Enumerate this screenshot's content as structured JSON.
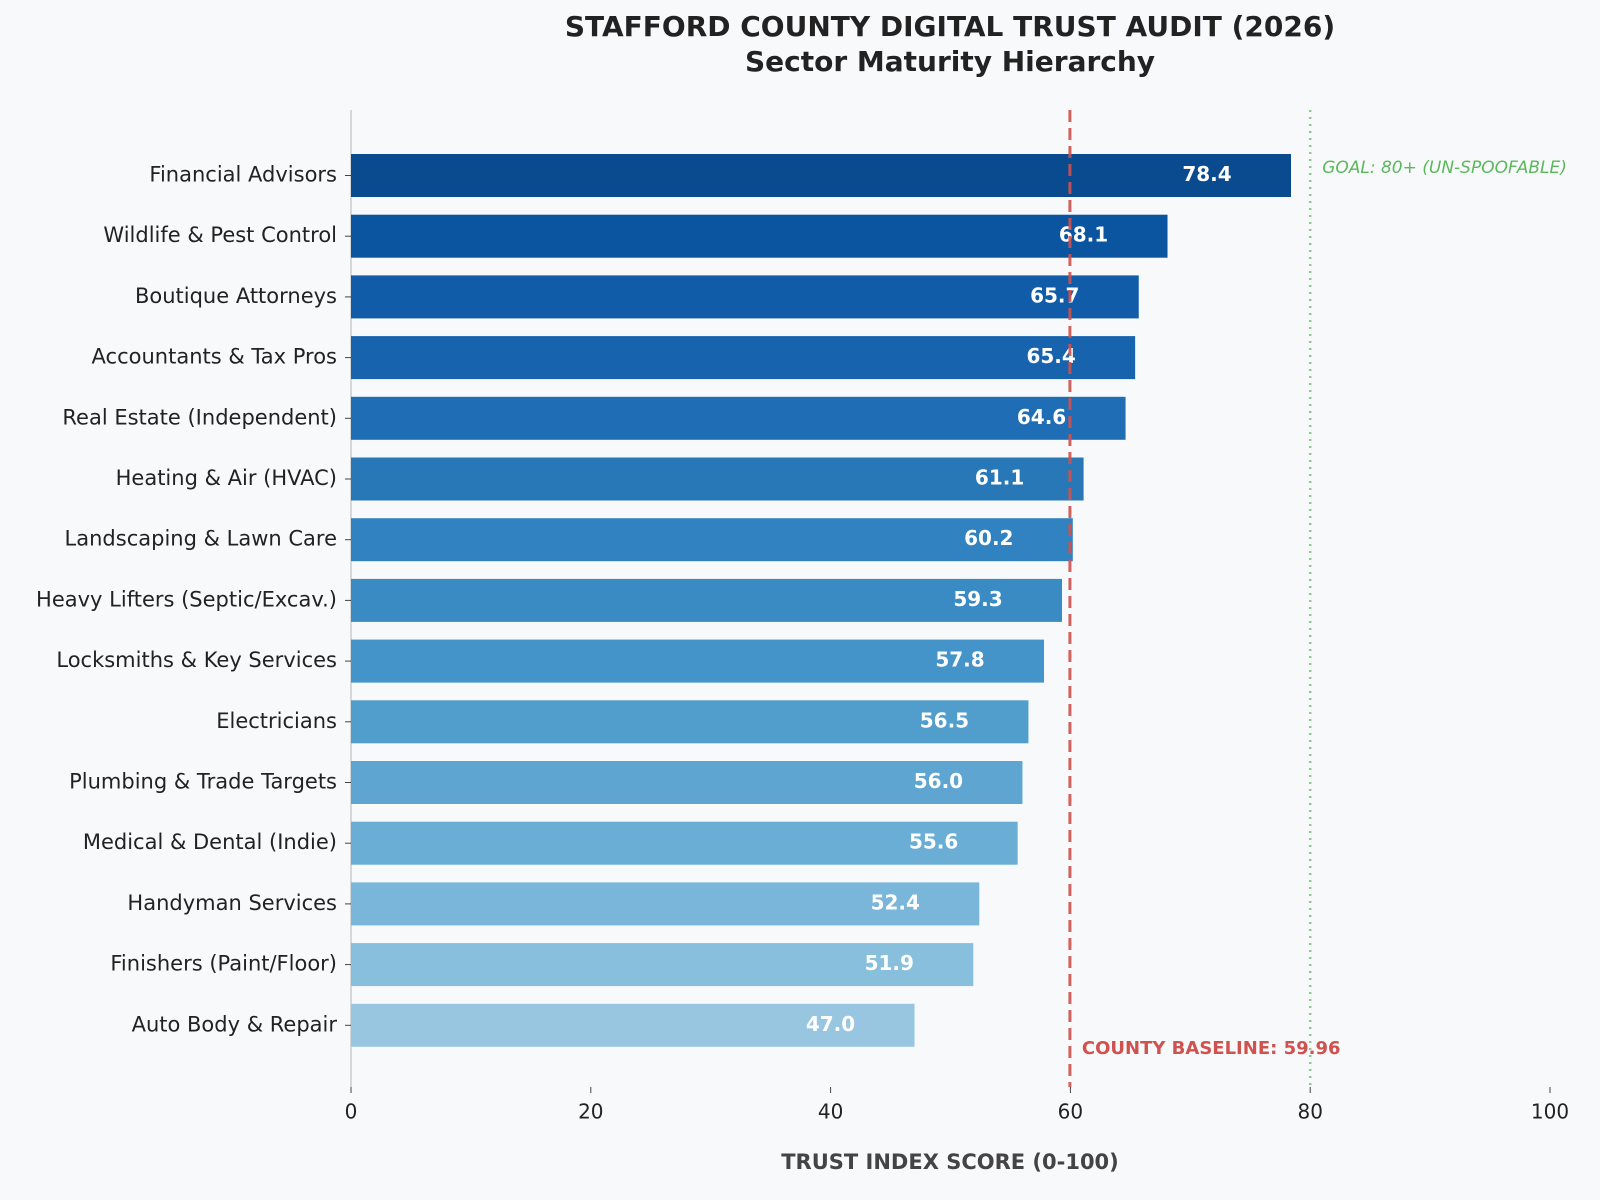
{
  "chart_data": {
    "type": "barh",
    "title": "STAFFORD COUNTY DIGITAL TRUST AUDIT (2026)",
    "subtitle": "Sector Maturity Hierarchy",
    "x_label": "TRUST INDEX SCORE (0-100)",
    "categories": [
      "Financial Advisors",
      "Wildlife & Pest Control",
      "Boutique Attorneys",
      "Accountants & Tax Pros",
      "Real Estate (Independent)",
      "Heating & Air (HVAC)",
      "Landscaping & Lawn Care",
      "Heavy Lifters (Septic/Excav.)",
      "Locksmiths & Key Services",
      "Electricians",
      "Plumbing & Trade Targets",
      "Medical & Dental (Indie)",
      "Handyman Services",
      "Finishers (Paint/Floor)",
      "Auto Body & Repair"
    ],
    "values": [
      78.4,
      68.1,
      65.7,
      65.4,
      64.6,
      61.1,
      60.2,
      59.3,
      57.8,
      56.5,
      56.0,
      55.6,
      52.4,
      51.9,
      47.0
    ],
    "value_labels": [
      "78.4",
      "68.1",
      "65.7",
      "65.4",
      "64.6",
      "61.1",
      "60.2",
      "59.3",
      "57.8",
      "56.5",
      "56.0",
      "55.6",
      "52.4",
      "51.9",
      "47.0"
    ],
    "colors": [
      "#0a4a8e",
      "#0b55a0",
      "#115ca8",
      "#1763ad",
      "#1f6eb5",
      "#2878b8",
      "#3083c0",
      "#3a8bc4",
      "#4594c9",
      "#519dcc",
      "#5ea6d1",
      "#6aaed6",
      "#79b6d9",
      "#88bfdc",
      "#98c5e0"
    ],
    "xlim": [
      0,
      100
    ],
    "xticks": [
      0,
      20,
      40,
      60,
      80,
      100
    ],
    "reference_lines": [
      {
        "value": 59.96,
        "label": "COUNTY BASELINE: 59.96",
        "color": "#d0524e",
        "style": "dashed"
      },
      {
        "value": 80,
        "label": "GOAL: 80+ (UN-SPOOFABLE)",
        "color": "#5cb85c",
        "style": "dotted"
      }
    ]
  }
}
